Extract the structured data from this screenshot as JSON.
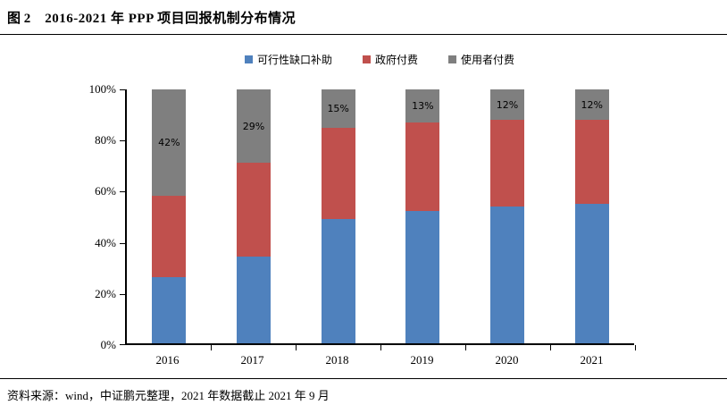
{
  "header": {
    "fig_label": "图 2",
    "title": "2016-2021 年 PPP 项目回报机制分布情况"
  },
  "chart_data": {
    "type": "bar",
    "stacked": true,
    "title": "2016-2021 年 PPP 项目回报机制分布情况",
    "categories": [
      "2016",
      "2017",
      "2018",
      "2019",
      "2020",
      "2021"
    ],
    "series": [
      {
        "name": "可行性缺口补助",
        "color": "#4F81BD",
        "values": [
          26,
          34,
          49,
          52,
          54,
          55
        ]
      },
      {
        "name": "政府付费",
        "color": "#C0504D",
        "values": [
          32,
          37,
          36,
          35,
          34,
          33
        ]
      },
      {
        "name": "使用者付费",
        "color": "#7F7F7F",
        "values": [
          42,
          29,
          15,
          13,
          12,
          12
        ],
        "data_labels": [
          "42%",
          "29%",
          "15%",
          "13%",
          "12%",
          "12%"
        ]
      }
    ],
    "ylabel": "",
    "xlabel": "",
    "ylim": [
      0,
      100
    ],
    "ytick_values": [
      0,
      20,
      40,
      60,
      80,
      100
    ],
    "ytick_labels": [
      "0%",
      "20%",
      "40%",
      "60%",
      "80%",
      "100%"
    ],
    "legend_position": "top",
    "grid": false
  },
  "footer": {
    "source": "资料来源：wind，中证鹏元整理，2021 年数据截止 2021 年 9 月"
  }
}
